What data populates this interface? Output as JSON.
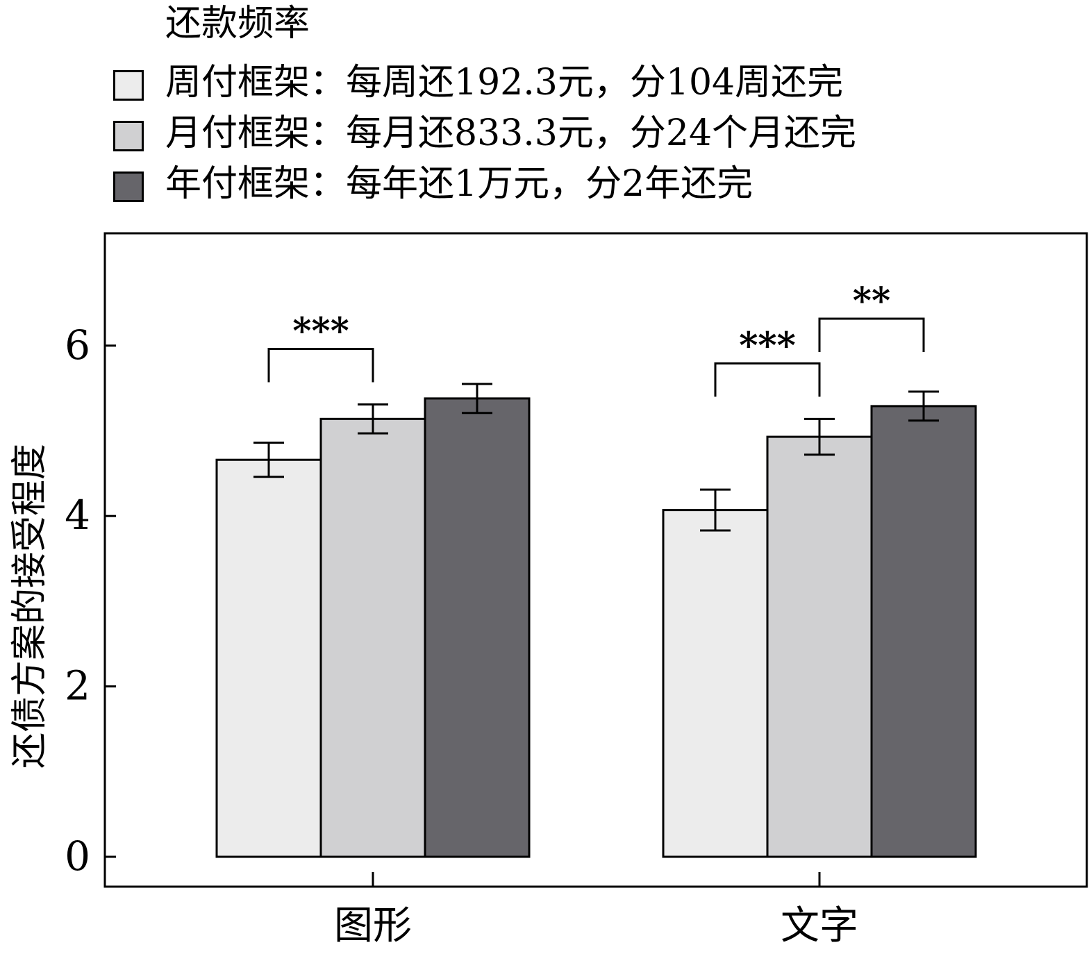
{
  "chart_data": {
    "type": "bar",
    "title": "",
    "xlabel": "",
    "ylabel": "还债方案的接受程度",
    "ylim": [
      0,
      7.3
    ],
    "yticks": [
      0,
      2,
      4,
      6
    ],
    "grid": false,
    "legend_title": "还款频率",
    "legend_position": "top",
    "categories": [
      "图形",
      "文字"
    ],
    "series": [
      {
        "name": "周付框架：每周还192.3元，分104周还完",
        "color": "#ececec",
        "values": [
          4.66,
          4.07
        ],
        "errors": [
          0.2,
          0.24
        ]
      },
      {
        "name": "月付框架：每月还833.3元，分24个月还完",
        "color": "#d0d0d2",
        "values": [
          5.14,
          4.93
        ],
        "errors": [
          0.17,
          0.21
        ]
      },
      {
        "name": "年付框架：每年还1万元，分2年还完",
        "color": "#66656a",
        "values": [
          5.38,
          5.29
        ],
        "errors": [
          0.17,
          0.17
        ]
      }
    ],
    "significance": [
      {
        "category": 0,
        "from_series": 0,
        "to_series": 1,
        "label": "***"
      },
      {
        "category": 1,
        "from_series": 0,
        "to_series": 1,
        "label": "***"
      },
      {
        "category": 1,
        "from_series": 1,
        "to_series": 2,
        "label": "**"
      }
    ]
  }
}
